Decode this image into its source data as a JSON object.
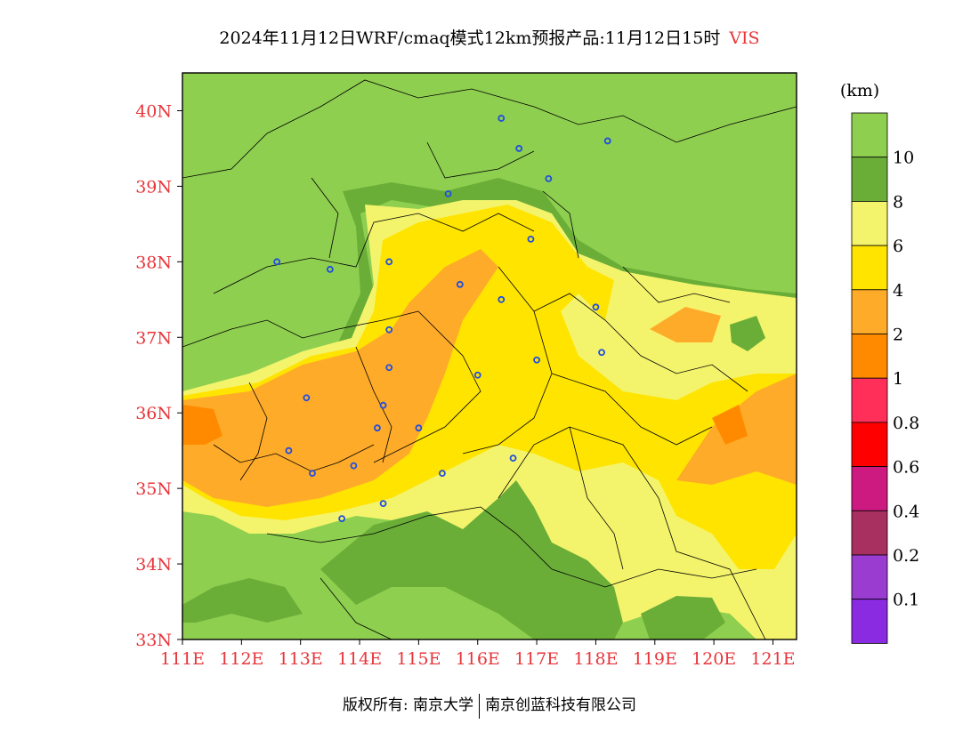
{
  "header": {
    "title": "2024年11月12日WRF/cmaq模式12km预报产品:11月12日15时",
    "variable": "VIS"
  },
  "legend": {
    "unit": "(km)",
    "levels": [
      {
        "label": "",
        "color": "#8fcf50"
      },
      {
        "label": "10",
        "color": "#6aae38"
      },
      {
        "label": "8",
        "color": "#f4f46c"
      },
      {
        "label": "6",
        "color": "#ffe400"
      },
      {
        "label": "4",
        "color": "#ffab2a"
      },
      {
        "label": "2",
        "color": "#ff8a00"
      },
      {
        "label": "1",
        "color": "#ff2f5a"
      },
      {
        "label": "0.8",
        "color": "#ff0000"
      },
      {
        "label": "0.6",
        "color": "#cc1a80"
      },
      {
        "label": "0.4",
        "color": "#a83060"
      },
      {
        "label": "0.2",
        "color": "#9a3cd0"
      },
      {
        "label": "0.1",
        "color": "#8a2be2"
      }
    ]
  },
  "axes": {
    "lon_labels": [
      "111E",
      "112E",
      "113E",
      "114E",
      "115E",
      "116E",
      "117E",
      "118E",
      "119E",
      "120E",
      "121E"
    ],
    "lat_labels": [
      "33N",
      "34N",
      "35N",
      "36N",
      "37N",
      "38N",
      "39N",
      "40N"
    ],
    "lon_range": [
      111,
      121.4
    ],
    "lat_range": [
      33,
      40.5
    ]
  },
  "stations": [
    [
      116.4,
      39.9
    ],
    [
      116.7,
      39.5
    ],
    [
      117.2,
      39.1
    ],
    [
      118.2,
      39.6
    ],
    [
      115.5,
      38.9
    ],
    [
      116.9,
      38.3
    ],
    [
      114.5,
      38.0
    ],
    [
      112.6,
      38.0
    ],
    [
      113.5,
      37.9
    ],
    [
      115.7,
      37.7
    ],
    [
      116.4,
      37.5
    ],
    [
      118.0,
      37.4
    ],
    [
      114.5,
      37.1
    ],
    [
      114.5,
      36.6
    ],
    [
      116.0,
      36.5
    ],
    [
      117.0,
      36.7
    ],
    [
      118.1,
      36.8
    ],
    [
      113.1,
      36.2
    ],
    [
      114.4,
      36.1
    ],
    [
      114.3,
      35.8
    ],
    [
      115.0,
      35.8
    ],
    [
      112.8,
      35.5
    ],
    [
      113.9,
      35.3
    ],
    [
      113.2,
      35.2
    ],
    [
      115.4,
      35.2
    ],
    [
      116.6,
      35.4
    ],
    [
      114.4,
      34.8
    ],
    [
      113.7,
      34.6
    ]
  ],
  "footer": {
    "left": "版权所有: 南京大学",
    "right": "南京创蓝科技有限公司"
  }
}
